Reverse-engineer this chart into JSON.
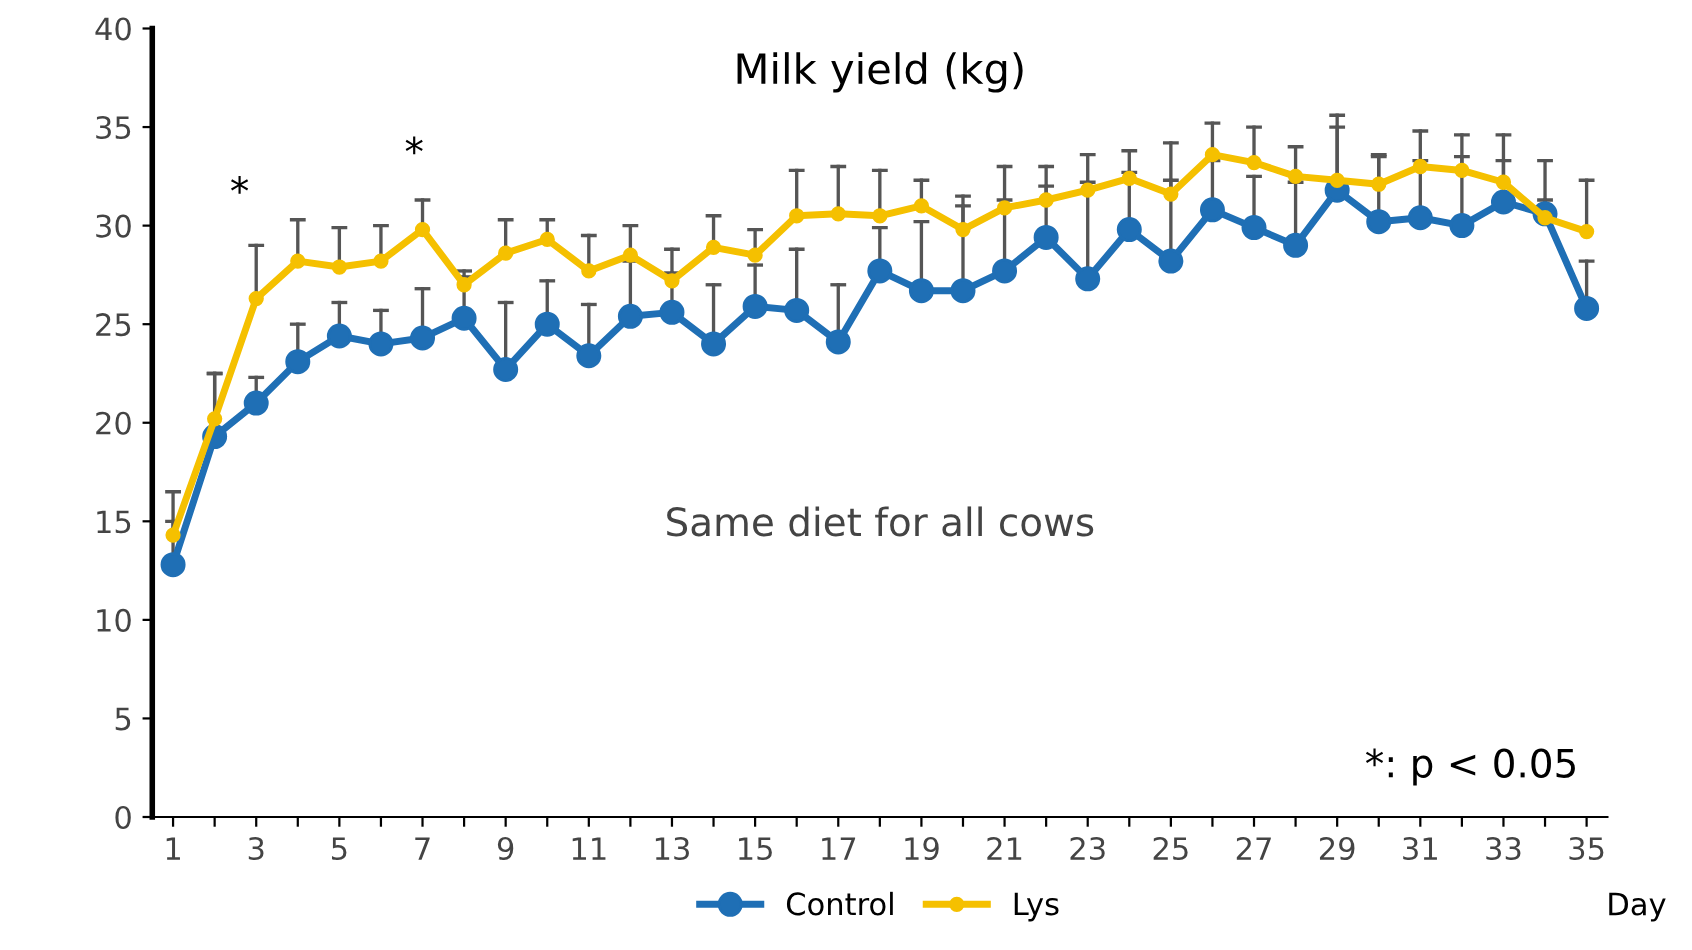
{
  "chart_data": {
    "type": "line",
    "title": "Milk yield (kg)",
    "xlabel": "Day",
    "categories": [
      "1",
      null,
      "3",
      null,
      "5",
      null,
      "7",
      null,
      "9",
      null,
      "11",
      null,
      "13",
      null,
      "15",
      null,
      "17",
      null,
      "19",
      null,
      "21",
      null,
      "23",
      null,
      "25",
      null,
      "27",
      null,
      "29",
      null,
      "31",
      null,
      "33",
      null,
      "35"
    ],
    "series": [
      {
        "name": "Control",
        "color": "#1f6fb5",
        "values": [
          12.8,
          19.3,
          21,
          23.1,
          24.4,
          24,
          24.3,
          25.3,
          22.7,
          25,
          23.4,
          25.4,
          25.6,
          24,
          25.9,
          25.7,
          24.1,
          27.7,
          26.7,
          26.7,
          27.7,
          29.4,
          27.3,
          29.8,
          28.2,
          30.8,
          29.9,
          29,
          31.8,
          30.2,
          30.4,
          30,
          31.2,
          30.6,
          25.8
        ],
        "errors": [
          [
            12.8,
            15
          ],
          [
            19.3,
            22.5
          ],
          [
            21,
            22.3
          ],
          [
            23.1,
            25
          ],
          [
            24.4,
            26.1
          ],
          [
            24,
            25.7
          ],
          [
            24.3,
            26.8
          ],
          [
            25.3,
            27.4
          ],
          [
            22.7,
            26.1
          ],
          [
            25,
            27.2
          ],
          [
            23.4,
            26
          ],
          [
            25.4,
            28.2
          ],
          [
            25.6,
            27.6
          ],
          [
            24,
            27
          ],
          [
            25.9,
            28
          ],
          [
            25.7,
            28.8
          ],
          [
            24.1,
            27
          ],
          [
            27.7,
            29.9
          ],
          [
            26.7,
            30.2
          ],
          [
            26.7,
            31
          ],
          [
            27.7,
            31.3
          ],
          [
            29.4,
            32
          ],
          [
            27.3,
            32.2
          ],
          [
            29.8,
            32.7
          ],
          [
            28.2,
            32.3
          ],
          [
            30.8,
            33.3
          ],
          [
            29.9,
            32.5
          ],
          [
            29,
            32.2
          ],
          [
            31.8,
            35
          ],
          [
            30.2,
            33.5
          ],
          [
            30.4,
            33.3
          ],
          [
            30,
            33.5
          ],
          [
            31.2,
            33.3
          ],
          [
            30.6,
            31.3
          ],
          [
            25.8,
            28.2
          ]
        ]
      },
      {
        "name": "Lys",
        "color": "#f5c000",
        "values": [
          14.3,
          20.2,
          26.3,
          28.2,
          27.9,
          28.2,
          29.8,
          27,
          28.6,
          29.3,
          27.7,
          28.5,
          27.2,
          28.9,
          28.5,
          30.5,
          30.6,
          30.5,
          31,
          29.8,
          30.9,
          31.3,
          31.8,
          32.4,
          31.6,
          33.6,
          33.2,
          32.5,
          32.3,
          32.1,
          33,
          32.8,
          32.2,
          30.4,
          29.7
        ],
        "errors": [
          [
            14.3,
            16.5
          ],
          [
            20.2,
            22.5
          ],
          [
            26.3,
            29
          ],
          [
            28.2,
            30.3
          ],
          [
            27.9,
            29.9
          ],
          [
            28.2,
            30
          ],
          [
            29.8,
            31.3
          ],
          [
            27,
            27.7
          ],
          [
            28.6,
            30.3
          ],
          [
            29.3,
            30.3
          ],
          [
            27.7,
            29.5
          ],
          [
            28.5,
            30
          ],
          [
            27.2,
            28.8
          ],
          [
            28.9,
            30.5
          ],
          [
            28.5,
            29.8
          ],
          [
            30.5,
            32.8
          ],
          [
            30.6,
            33
          ],
          [
            30.5,
            32.8
          ],
          [
            31,
            32.3
          ],
          [
            29.8,
            31.5
          ],
          [
            30.9,
            33
          ],
          [
            31.3,
            33
          ],
          [
            31.8,
            33.6
          ],
          [
            32.4,
            33.8
          ],
          [
            31.6,
            34.2
          ],
          [
            33.6,
            35.2
          ],
          [
            33.2,
            35
          ],
          [
            32.5,
            34
          ],
          [
            32.3,
            35.6
          ],
          [
            32.1,
            33.6
          ],
          [
            33,
            34.8
          ],
          [
            32.8,
            34.6
          ],
          [
            32.2,
            34.6
          ],
          [
            30.4,
            33.3
          ],
          [
            29.7,
            32.3
          ]
        ]
      }
    ],
    "ylim": [
      0,
      40
    ],
    "yticks": [
      0,
      5,
      10,
      15,
      20,
      25,
      30,
      35,
      40
    ],
    "marker": "circle",
    "line_style": "solid",
    "grid": false,
    "legend": "bottom",
    "annotations": [
      "*",
      "*",
      "Same diet for all cows",
      "*: p < 0.05"
    ]
  }
}
